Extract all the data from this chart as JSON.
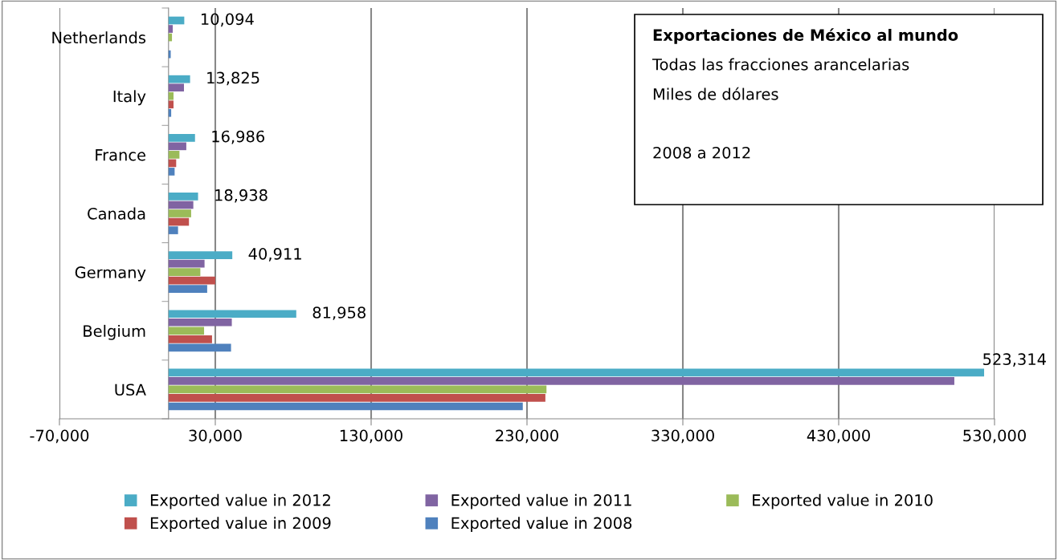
{
  "chart_data": {
    "type": "bar",
    "orientation": "horizontal",
    "title": "Exportaciones de México al mundo",
    "annotations": [
      "Todas las fracciones arancelarias",
      "Miles de dólares",
      "2008 a 2012"
    ],
    "categories": [
      "Netherlands",
      "Italy",
      "France",
      "Canada",
      "Germany",
      "Belgium",
      "USA"
    ],
    "series": [
      {
        "name": "Exported value in 2012",
        "color": "#4bacc6",
        "values": [
          10094,
          13825,
          16986,
          18938,
          40911,
          81958,
          523314
        ],
        "value_labels": [
          "10,094",
          "13,825",
          "16,986",
          "18,938",
          "40,911",
          "81,958",
          "523,314"
        ]
      },
      {
        "name": "Exported value in 2011",
        "color": "#8064a2",
        "values": [
          2700,
          9900,
          11400,
          15900,
          23100,
          40600,
          504200
        ]
      },
      {
        "name": "Exported value in 2010",
        "color": "#9bbb59",
        "values": [
          2200,
          3200,
          7000,
          14500,
          20400,
          22800,
          242500
        ]
      },
      {
        "name": "Exported value in 2009",
        "color": "#c0504d",
        "values": [
          null,
          3200,
          4900,
          13100,
          30000,
          27900,
          241800
        ]
      },
      {
        "name": "Exported value in 2008",
        "color": "#4f81bd",
        "values": [
          1400,
          1700,
          3900,
          6100,
          24800,
          40100,
          227300
        ]
      }
    ],
    "xlim": [
      -70000,
      530000
    ],
    "xticks": [
      {
        "value": -70000,
        "label": "-70,000"
      },
      {
        "value": 30000,
        "label": "30,000"
      },
      {
        "value": 130000,
        "label": "130,000"
      },
      {
        "value": 230000,
        "label": "230,000"
      },
      {
        "value": 330000,
        "label": "330,000"
      },
      {
        "value": 430000,
        "label": "430,000"
      },
      {
        "value": 530000,
        "label": "530,000"
      }
    ],
    "grid": "x",
    "legend": "bottom"
  }
}
